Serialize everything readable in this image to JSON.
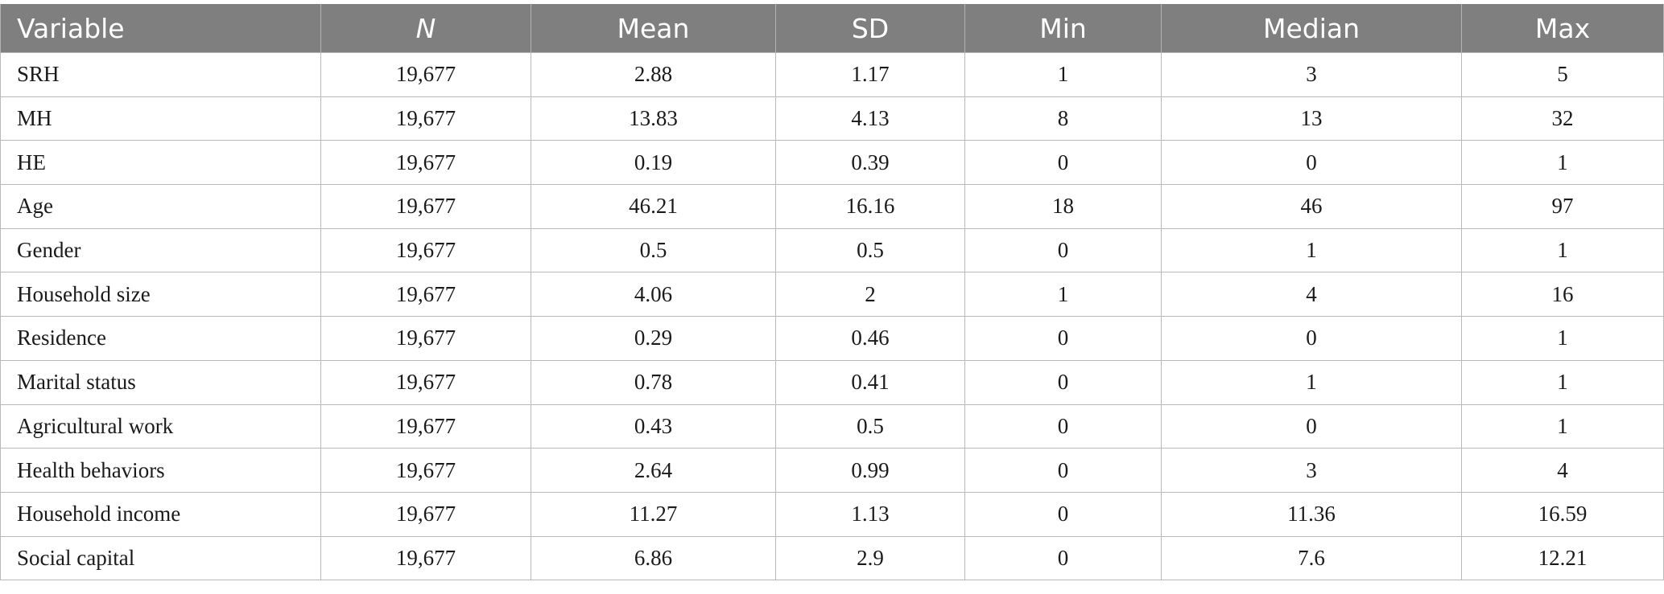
{
  "table": {
    "headers": [
      "Variable",
      "N",
      "Mean",
      "SD",
      "Min",
      "Median",
      "Max"
    ],
    "rows": [
      [
        "SRH",
        "19,677",
        "2.88",
        "1.17",
        "1",
        "3",
        "5"
      ],
      [
        "MH",
        "19,677",
        "13.83",
        "4.13",
        "8",
        "13",
        "32"
      ],
      [
        "HE",
        "19,677",
        "0.19",
        "0.39",
        "0",
        "0",
        "1"
      ],
      [
        "Age",
        "19,677",
        "46.21",
        "16.16",
        "18",
        "46",
        "97"
      ],
      [
        "Gender",
        "19,677",
        "0.5",
        "0.5",
        "0",
        "1",
        "1"
      ],
      [
        "Household size",
        "19,677",
        "4.06",
        "2",
        "1",
        "4",
        "16"
      ],
      [
        "Residence",
        "19,677",
        "0.29",
        "0.46",
        "0",
        "0",
        "1"
      ],
      [
        "Marital status",
        "19,677",
        "0.78",
        "0.41",
        "0",
        "1",
        "1"
      ],
      [
        "Agricultural work",
        "19,677",
        "0.43",
        "0.5",
        "0",
        "0",
        "1"
      ],
      [
        "Health behaviors",
        "19,677",
        "2.64",
        "0.99",
        "0",
        "3",
        "4"
      ],
      [
        "Household income",
        "19,677",
        "11.27",
        "1.13",
        "0",
        "11.36",
        "16.59"
      ],
      [
        "Social capital",
        "19,677",
        "6.86",
        "2.9",
        "0",
        "7.6",
        "12.21"
      ]
    ]
  },
  "colors": {
    "header_background": "#7f7f7f",
    "header_text": "#ffffff",
    "grid_line": "#b9b9b9"
  }
}
